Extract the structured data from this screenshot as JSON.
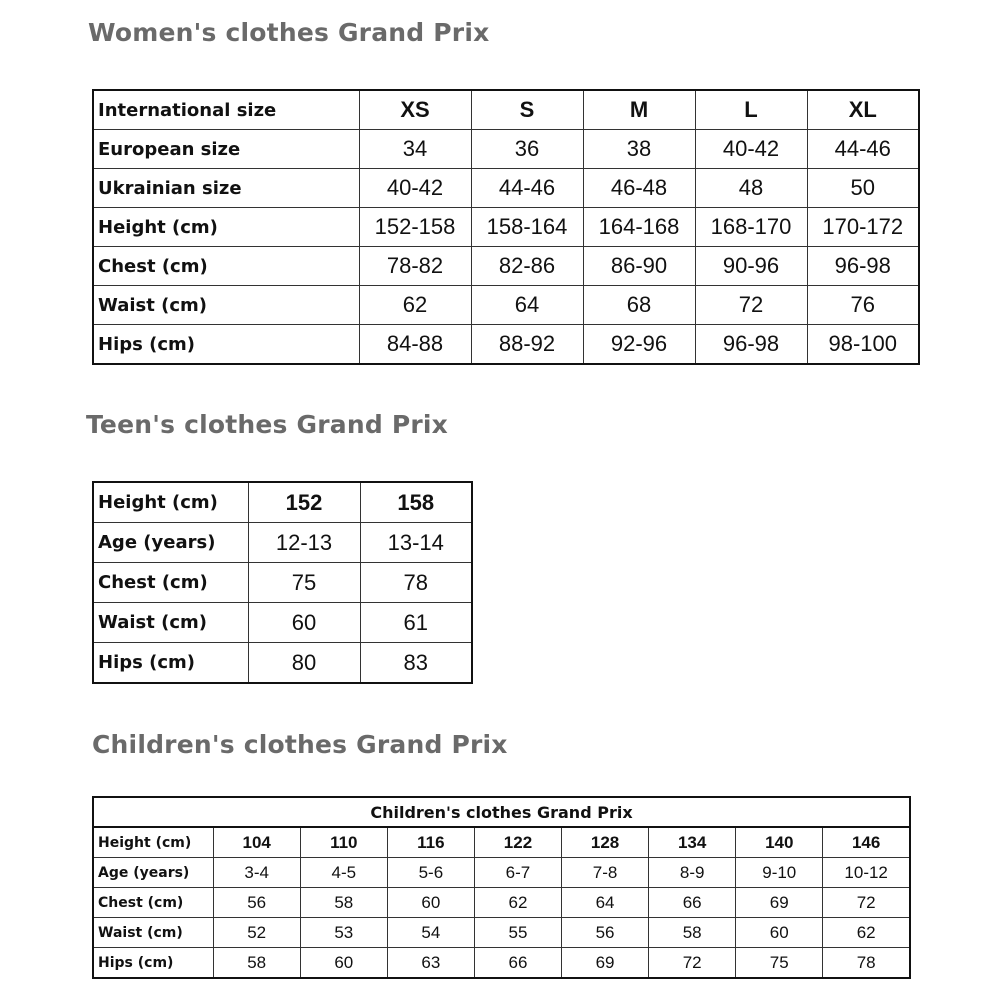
{
  "sections": [
    {
      "title": "Women's clothes Grand Prix",
      "rows": [
        [
          "International size",
          "XS",
          "S",
          "M",
          "L",
          "XL"
        ],
        [
          "European size",
          "34",
          "36",
          "38",
          "40-42",
          "44-46"
        ],
        [
          "Ukrainian size",
          "40-42",
          "44-46",
          "46-48",
          "48",
          "50"
        ],
        [
          "Height (cm)",
          "152-158",
          "158-164",
          "164-168",
          "168-170",
          "170-172"
        ],
        [
          "Chest (cm)",
          "78-82",
          "82-86",
          "86-90",
          "90-96",
          "96-98"
        ],
        [
          "Waist (cm)",
          "62",
          "64",
          "68",
          "72",
          "76"
        ],
        [
          "Hips (cm)",
          "84-88",
          "88-92",
          "92-96",
          "96-98",
          "98-100"
        ]
      ]
    },
    {
      "title": "Teen's clothes Grand Prix",
      "rows": [
        [
          "Height (cm)",
          "152",
          "158"
        ],
        [
          "Age (years)",
          "12-13",
          "13-14"
        ],
        [
          "Chest (cm)",
          "75",
          "78"
        ],
        [
          "Waist (cm)",
          "60",
          "61"
        ],
        [
          "Hips (cm)",
          "80",
          "83"
        ]
      ]
    },
    {
      "title": "Children's clothes Grand Prix",
      "caption": "Children's clothes Grand Prix",
      "rows": [
        [
          "Height (cm)",
          "104",
          "110",
          "116",
          "122",
          "128",
          "134",
          "140",
          "146"
        ],
        [
          "Age (years)",
          "3-4",
          "4-5",
          "5-6",
          "6-7",
          "7-8",
          "8-9",
          "9-10",
          "10-12"
        ],
        [
          "Chest (cm)",
          "56",
          "58",
          "60",
          "62",
          "64",
          "66",
          "69",
          "72"
        ],
        [
          "Waist (cm)",
          "52",
          "53",
          "54",
          "55",
          "56",
          "58",
          "60",
          "62"
        ],
        [
          "Hips (cm)",
          "58",
          "60",
          "63",
          "66",
          "69",
          "72",
          "75",
          "78"
        ]
      ]
    }
  ]
}
